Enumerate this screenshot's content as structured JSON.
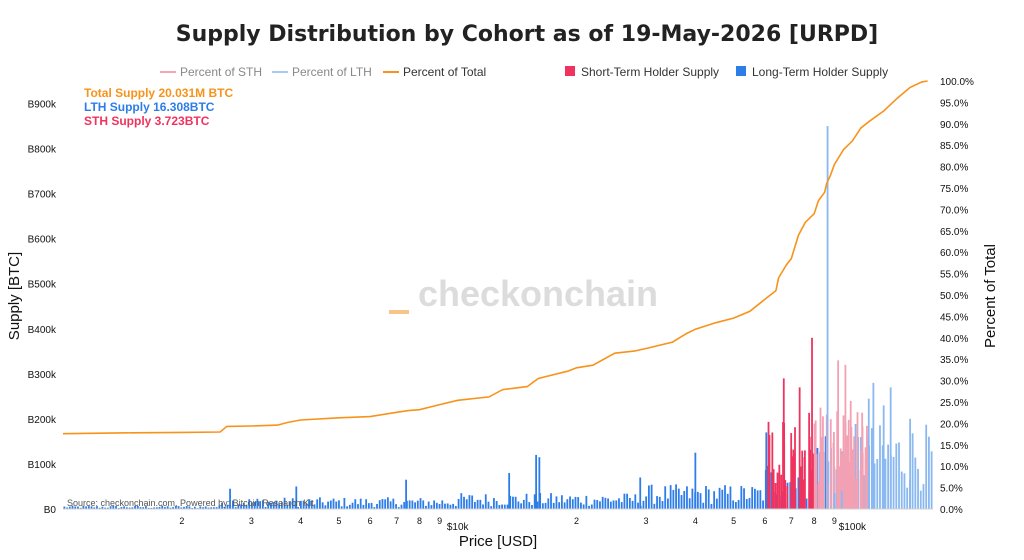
{
  "chart_data": {
    "type": "bar",
    "title": "Supply Distribution by Cohort as of 19-May-2026 [URPD]",
    "xlabel": "Price [USD]",
    "ylabel": "Supply [BTC]",
    "y2label": "Percent of Total",
    "xscale": "log",
    "xlim": [
      1000,
      160000
    ],
    "ylim": [
      0,
      950000
    ],
    "y2lim": [
      0,
      100
    ],
    "grid": false,
    "legend_position": "top",
    "x_ticks": [
      {
        "value": 2000,
        "label": "2"
      },
      {
        "value": 3000,
        "label": "3"
      },
      {
        "value": 4000,
        "label": "4"
      },
      {
        "value": 5000,
        "label": "5"
      },
      {
        "value": 6000,
        "label": "6"
      },
      {
        "value": 7000,
        "label": "7"
      },
      {
        "value": 8000,
        "label": "8"
      },
      {
        "value": 9000,
        "label": "9"
      },
      {
        "value": 10000,
        "label": "$10k"
      },
      {
        "value": 20000,
        "label": "2"
      },
      {
        "value": 30000,
        "label": "3"
      },
      {
        "value": 40000,
        "label": "4"
      },
      {
        "value": 50000,
        "label": "5"
      },
      {
        "value": 60000,
        "label": "6"
      },
      {
        "value": 70000,
        "label": "7"
      },
      {
        "value": 80000,
        "label": "8"
      },
      {
        "value": 90000,
        "label": "9"
      },
      {
        "value": 100000,
        "label": "$100k"
      }
    ],
    "y_ticks": [
      {
        "value": 0,
        "label": "B0"
      },
      {
        "value": 100000,
        "label": "B100k"
      },
      {
        "value": 200000,
        "label": "B200k"
      },
      {
        "value": 300000,
        "label": "B300k"
      },
      {
        "value": 400000,
        "label": "B400k"
      },
      {
        "value": 500000,
        "label": "B500k"
      },
      {
        "value": 600000,
        "label": "B600k"
      },
      {
        "value": 700000,
        "label": "B700k"
      },
      {
        "value": 800000,
        "label": "B800k"
      },
      {
        "value": 900000,
        "label": "B900k"
      }
    ],
    "y2_ticks": [
      {
        "value": 0,
        "label": "0.0%"
      },
      {
        "value": 5,
        "label": "5.0%"
      },
      {
        "value": 10,
        "label": "10.0%"
      },
      {
        "value": 15,
        "label": "15.0%"
      },
      {
        "value": 20,
        "label": "20.0%"
      },
      {
        "value": 25,
        "label": "25.0%"
      },
      {
        "value": 30,
        "label": "30.0%"
      },
      {
        "value": 35,
        "label": "35.0%"
      },
      {
        "value": 40,
        "label": "40.0%"
      },
      {
        "value": 45,
        "label": "45.0%"
      },
      {
        "value": 50,
        "label": "50.0%"
      },
      {
        "value": 55,
        "label": "55.0%"
      },
      {
        "value": 60,
        "label": "60.0%"
      },
      {
        "value": 65,
        "label": "65.0%"
      },
      {
        "value": 70,
        "label": "70.0%"
      },
      {
        "value": 75,
        "label": "75.0%"
      },
      {
        "value": 80,
        "label": "80.0%"
      },
      {
        "value": 85,
        "label": "85.0%"
      },
      {
        "value": 90,
        "label": "90.0%"
      },
      {
        "value": 95,
        "label": "95.0%"
      },
      {
        "value": 100,
        "label": "100.0%"
      }
    ],
    "legend": [
      {
        "name": "Percent of STH",
        "color": "#f4a6b8",
        "kind": "line",
        "dim": true
      },
      {
        "name": "Percent of LTH",
        "color": "#a9c8f2",
        "kind": "line",
        "dim": true
      },
      {
        "name": "Percent of Total",
        "color": "#f7931a",
        "kind": "line",
        "dim": false
      },
      {
        "name": "Short-Term Holder Supply",
        "color": "#f0325f",
        "kind": "box",
        "dim": false
      },
      {
        "name": "Long-Term Holder Supply",
        "color": "#2d7de8",
        "kind": "box",
        "dim": false
      }
    ],
    "annotations": [
      {
        "text": "Total Supply 20.031M BTC",
        "color": "#f7931a"
      },
      {
        "text": "LTH Supply 16.308BTC",
        "color": "#2d7de8"
      },
      {
        "text": "STH Supply 3.723BTC",
        "color": "#f0325f"
      }
    ],
    "source": "Source: checkonchain.com, Powered by: Bitcoin Research Kit",
    "watermark": "checkonchain",
    "colors": {
      "lth": "#2d7de8",
      "lth_light": "#8ab8f0",
      "sth": "#f0325f",
      "sth_light": "#f4a0b3",
      "total": "#f7931a"
    },
    "percent_of_total": {
      "x": [
        1000,
        1500,
        2000,
        2500,
        2600,
        3000,
        3500,
        3700,
        4000,
        5000,
        6000,
        7000,
        7500,
        8000,
        9000,
        10000,
        12000,
        13000,
        15000,
        16000,
        17000,
        19000,
        20000,
        22000,
        25000,
        28000,
        30000,
        35000,
        38000,
        40000,
        45000,
        50000,
        55000,
        60000,
        64000,
        65000,
        68000,
        70000,
        73000,
        76000,
        80000,
        82000,
        85000,
        86000,
        88000,
        90000,
        95000,
        100000,
        105000,
        110000,
        120000,
        130000,
        140000,
        150000,
        155000
      ],
      "y": [
        17.6,
        17.8,
        17.9,
        18.0,
        19.3,
        19.4,
        19.6,
        20.2,
        20.8,
        21.3,
        21.6,
        22.6,
        23.0,
        23.2,
        24.4,
        25.4,
        26.2,
        27.9,
        28.6,
        30.5,
        31.1,
        32.2,
        33.0,
        33.6,
        36.4,
        36.9,
        37.5,
        39.0,
        41.0,
        42.0,
        43.5,
        44.6,
        46.2,
        49.0,
        51.0,
        54.0,
        57.0,
        58.5,
        64.0,
        67.0,
        69.0,
        72.0,
        74.0,
        76.0,
        78.0,
        80.5,
        84.0,
        86.0,
        89.0,
        90.5,
        93.0,
        96.0,
        98.5,
        99.8,
        100.0
      ]
    },
    "lth_highlights": [
      {
        "x": 2650,
        "value": 45000
      },
      {
        "x": 3900,
        "value": 50000
      },
      {
        "x": 7400,
        "value": 65000
      },
      {
        "x": 13500,
        "value": 80000
      },
      {
        "x": 15800,
        "value": 120000
      },
      {
        "x": 16100,
        "value": 115000
      },
      {
        "x": 29000,
        "value": 70000
      },
      {
        "x": 40000,
        "value": 125000
      },
      {
        "x": 60500,
        "value": 170000
      },
      {
        "x": 86500,
        "value": 850000
      },
      {
        "x": 90000,
        "value": 35000
      },
      {
        "x": 94000,
        "value": 40000
      },
      {
        "x": 110000,
        "value": 245000
      },
      {
        "x": 113000,
        "value": 280000
      },
      {
        "x": 120000,
        "value": 230000
      },
      {
        "x": 125000,
        "value": 270000
      },
      {
        "x": 140000,
        "value": 200000
      }
    ],
    "sth_highlights": [
      {
        "x": 67000,
        "value": 290000
      },
      {
        "x": 73500,
        "value": 270000
      },
      {
        "x": 79000,
        "value": 380000
      },
      {
        "x": 83000,
        "value": 225000
      },
      {
        "x": 92000,
        "value": 330000
      },
      {
        "x": 96000,
        "value": 320000
      },
      {
        "x": 99000,
        "value": 240000
      },
      {
        "x": 103000,
        "value": 215000
      }
    ]
  }
}
